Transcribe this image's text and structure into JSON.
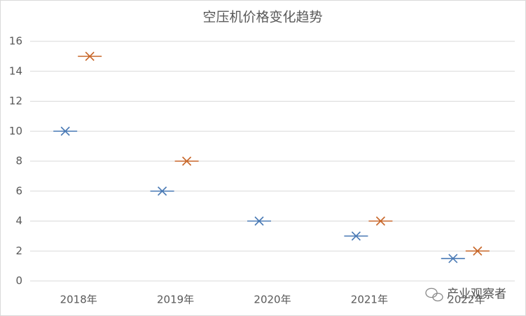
{
  "chart_data": {
    "type": "marker",
    "title": "空压机价格变化趋势",
    "categories": [
      "2018年",
      "2019年",
      "2020年",
      "2021年",
      "2022年"
    ],
    "series": [
      {
        "color": "#4a7ab5",
        "values": [
          10,
          6,
          4,
          3,
          1.5
        ]
      },
      {
        "color": "#c8672a",
        "values": [
          15,
          8,
          null,
          4,
          2
        ]
      }
    ],
    "ylim": [
      0,
      16
    ],
    "yticks": [
      0,
      2,
      4,
      6,
      8,
      10,
      12,
      14,
      16
    ],
    "grid": true,
    "watermark": "产业观察者"
  }
}
